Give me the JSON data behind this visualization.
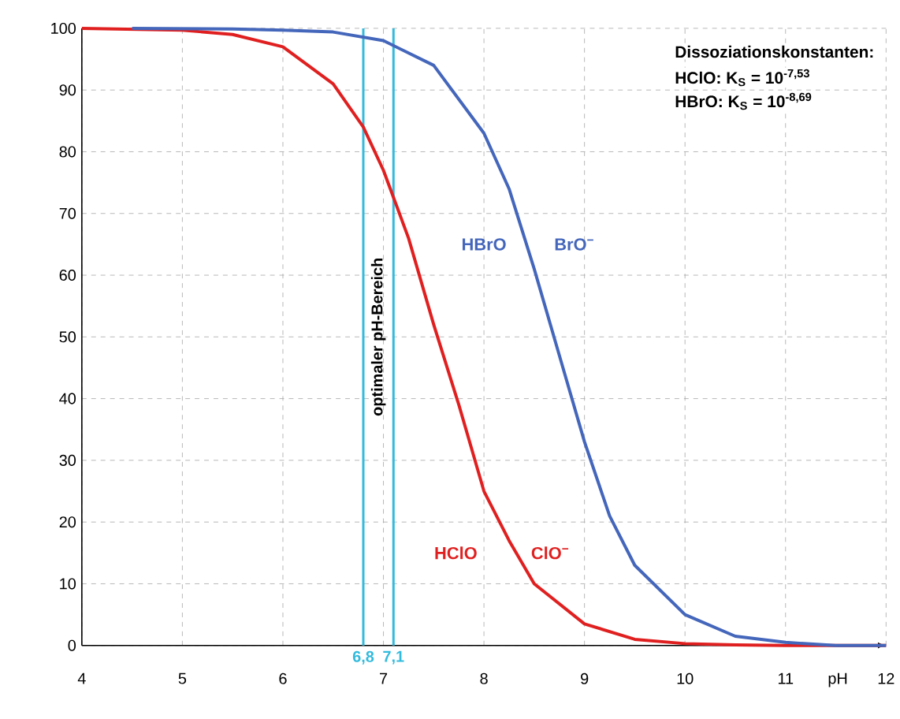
{
  "chart_data": {
    "type": "line",
    "xlabel": "pH",
    "xlim": [
      4,
      12
    ],
    "ylim": [
      0,
      100
    ],
    "xticks": [
      4,
      5,
      6,
      7,
      8,
      9,
      10,
      11,
      12
    ],
    "yticks": [
      0,
      10,
      20,
      30,
      40,
      50,
      60,
      70,
      80,
      90,
      100
    ],
    "grid": true,
    "marker": "none",
    "line_style": "solid",
    "series": [
      {
        "color": "#e02020",
        "x": [
          4,
          5,
          5.5,
          6,
          6.5,
          6.8,
          7,
          7.25,
          7.5,
          7.75,
          8,
          8.25,
          8.5,
          9,
          9.5,
          10,
          10.5,
          11,
          12
        ],
        "values": [
          100,
          99.7,
          99,
          97,
          91,
          84,
          77,
          66,
          52,
          39,
          25,
          17,
          10,
          3.5,
          1,
          0.3,
          0.1,
          0,
          0
        ]
      },
      {
        "color": "#4466bb",
        "x": [
          4.5,
          5.5,
          6,
          6.5,
          7,
          7.5,
          8,
          8.25,
          8.5,
          8.75,
          9,
          9.25,
          9.5,
          10,
          10.5,
          11,
          11.5,
          12
        ],
        "values": [
          100,
          99.9,
          99.7,
          99.4,
          98,
          94,
          83,
          74,
          61,
          47,
          33,
          21,
          13,
          5,
          1.5,
          0.5,
          0,
          0
        ]
      }
    ],
    "ref_lines": [
      {
        "axis": "x",
        "value": 6.8,
        "label": "6,8",
        "color": "#33bbdd"
      },
      {
        "axis": "x",
        "value": 7.1,
        "label": "7,1",
        "color": "#33bbdd"
      }
    ],
    "annotations": [
      "Dissoziationskonstanten:",
      "HClO: K$_{S}$ = 10$^{-7,53}$",
      "HBrO: K$_{S}$ = 10$^{-8,69}$",
      "optimaler pH-Bereich",
      "HBrO",
      "BrO$^{−}$",
      "HClO",
      "ClO$^{−}$"
    ]
  }
}
